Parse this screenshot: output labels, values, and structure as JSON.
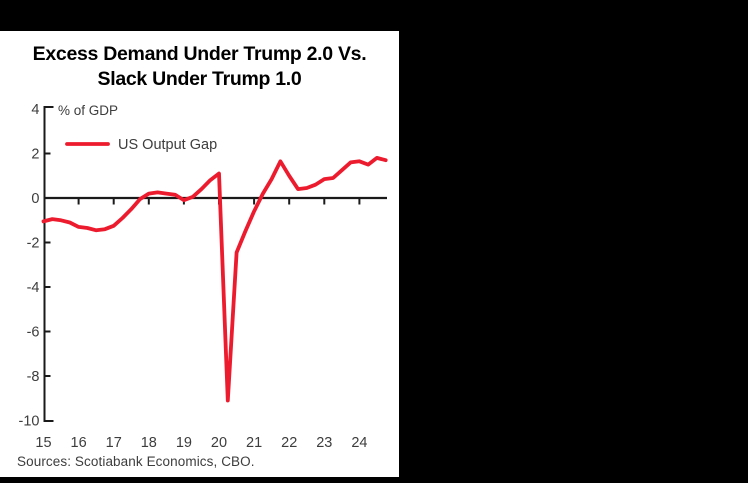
{
  "window": {
    "background": "#000000"
  },
  "panel": {
    "background": "#ffffff"
  },
  "title": {
    "line1": "Excess Demand Under Trump 2.0 Vs.",
    "line2": "Slack Under Trump 1.0"
  },
  "source": {
    "text": "Sources: Scotiabank Economics, CBO."
  },
  "colors": {
    "line_red": "#ED1B2E",
    "axis": "#1a1a1a",
    "label_text": "#3d3d3d",
    "title_text": "#000000"
  },
  "chart_data": {
    "type": "line",
    "title": "Excess Demand Under Trump 2.0 Vs. Slack Under Trump 1.0",
    "unit_label": "% of GDP",
    "ylabel": "% of GDP",
    "grid": false,
    "legend": {
      "position": "top-left",
      "entries": [
        {
          "label": "US Output Gap",
          "color": "#ED1B2E"
        }
      ]
    },
    "x_axis": {
      "label_years": [
        2015,
        2016,
        2017,
        2018,
        2019,
        2020,
        2021,
        2022,
        2023,
        2024
      ],
      "tick_labels": [
        "15",
        "16",
        "17",
        "18",
        "19",
        "20",
        "21",
        "22",
        "23",
        "24"
      ],
      "tick_mark_years": [
        2016,
        2017,
        2018,
        2019,
        2020,
        2021,
        2022,
        2023,
        2024
      ],
      "xlim": [
        2015,
        2024.85
      ]
    },
    "y_axis": {
      "ticks": [
        4,
        2,
        0,
        -2,
        -4,
        -6,
        -8,
        -10
      ],
      "ylim": [
        -10.3,
        4.3
      ]
    },
    "series": [
      {
        "name": "US Output Gap",
        "color": "#ED1B2E",
        "x": [
          2015.0,
          2015.25,
          2015.5,
          2015.75,
          2016.0,
          2016.25,
          2016.5,
          2016.75,
          2017.0,
          2017.25,
          2017.5,
          2017.75,
          2018.0,
          2018.25,
          2018.5,
          2018.75,
          2019.0,
          2019.25,
          2019.5,
          2019.75,
          2020.0,
          2020.25,
          2020.5,
          2020.75,
          2021.0,
          2021.25,
          2021.5,
          2021.75,
          2022.0,
          2022.25,
          2022.5,
          2022.75,
          2023.0,
          2023.25,
          2023.5,
          2023.75,
          2024.0,
          2024.25,
          2024.5,
          2024.75
        ],
        "values": [
          -1.05,
          -0.95,
          -1.0,
          -1.1,
          -1.3,
          -1.35,
          -1.45,
          -1.4,
          -1.25,
          -0.9,
          -0.5,
          -0.05,
          0.2,
          0.25,
          0.2,
          0.15,
          -0.1,
          0.05,
          0.4,
          0.8,
          1.1,
          -9.1,
          -2.45,
          -1.5,
          -0.6,
          0.2,
          0.85,
          1.65,
          1.0,
          0.4,
          0.45,
          0.6,
          0.85,
          0.9,
          1.25,
          1.6,
          1.65,
          1.5,
          1.8,
          1.7
        ]
      }
    ]
  }
}
